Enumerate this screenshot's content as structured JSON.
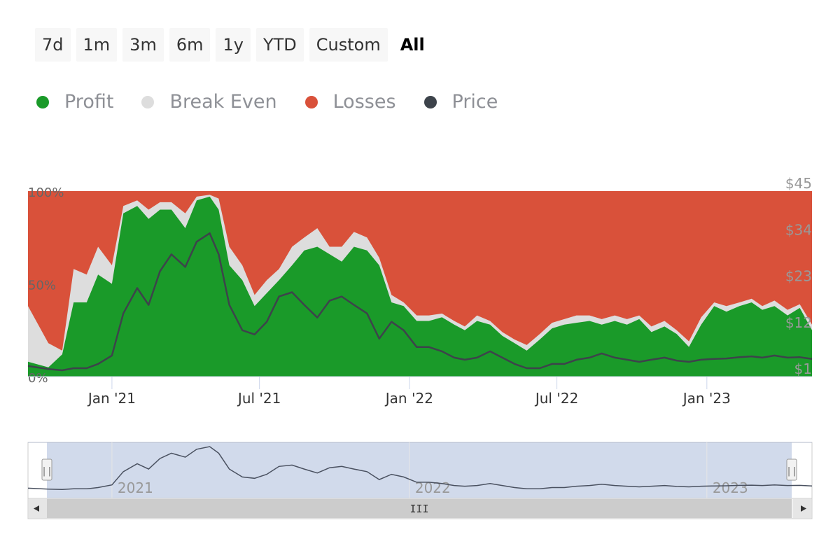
{
  "range_buttons": [
    {
      "label": "7d",
      "active": false
    },
    {
      "label": "1m",
      "active": false
    },
    {
      "label": "3m",
      "active": false
    },
    {
      "label": "6m",
      "active": false
    },
    {
      "label": "1y",
      "active": false
    },
    {
      "label": "YTD",
      "active": false
    },
    {
      "label": "Custom",
      "active": false
    },
    {
      "label": "All",
      "active": true
    }
  ],
  "legend": [
    {
      "name": "Profit",
      "color": "#1a9a29"
    },
    {
      "name": "Break Even",
      "color": "#dddddd"
    },
    {
      "name": "Losses",
      "color": "#d9513a"
    },
    {
      "name": "Price",
      "color": "#3d434b"
    }
  ],
  "chart_data": {
    "type": "area",
    "y_left": {
      "range": [
        0,
        100
      ],
      "ticks": [
        "0%",
        "50%",
        "100%"
      ]
    },
    "y_right": {
      "range": [
        1,
        45
      ],
      "ticks": [
        "$1",
        "$12",
        "$23",
        "$34",
        "$45"
      ]
    },
    "x_ticks": [
      {
        "date": "2021-01-01",
        "label": "Jan '21"
      },
      {
        "date": "2021-07-01",
        "label": "Jul '21"
      },
      {
        "date": "2022-01-01",
        "label": "Jan '22"
      },
      {
        "date": "2022-07-01",
        "label": "Jul '22"
      },
      {
        "date": "2023-01-01",
        "label": "Jan '23"
      }
    ],
    "x": [
      "2020-09-20",
      "2020-10-15",
      "2020-11-01",
      "2020-11-15",
      "2020-12-01",
      "2020-12-15",
      "2021-01-01",
      "2021-01-15",
      "2021-02-01",
      "2021-02-15",
      "2021-03-01",
      "2021-03-15",
      "2021-04-01",
      "2021-04-15",
      "2021-05-01",
      "2021-05-12",
      "2021-05-25",
      "2021-06-10",
      "2021-06-25",
      "2021-07-10",
      "2021-07-25",
      "2021-08-10",
      "2021-08-25",
      "2021-09-10",
      "2021-09-25",
      "2021-10-10",
      "2021-10-25",
      "2021-11-10",
      "2021-11-25",
      "2021-12-10",
      "2021-12-25",
      "2022-01-10",
      "2022-01-25",
      "2022-02-10",
      "2022-02-25",
      "2022-03-10",
      "2022-03-25",
      "2022-04-10",
      "2022-04-25",
      "2022-05-10",
      "2022-05-25",
      "2022-06-10",
      "2022-06-25",
      "2022-07-10",
      "2022-07-25",
      "2022-08-10",
      "2022-08-25",
      "2022-09-10",
      "2022-09-25",
      "2022-10-10",
      "2022-10-25",
      "2022-11-10",
      "2022-11-25",
      "2022-12-10",
      "2022-12-25",
      "2023-01-10",
      "2023-01-25",
      "2023-02-10",
      "2023-02-25",
      "2023-03-10",
      "2023-03-25",
      "2023-04-10",
      "2023-04-25",
      "2023-05-10"
    ],
    "series": [
      {
        "name": "Profit",
        "values": [
          8,
          5,
          12,
          40,
          40,
          55,
          50,
          88,
          92,
          85,
          90,
          90,
          80,
          95,
          97,
          90,
          60,
          52,
          38,
          45,
          52,
          60,
          68,
          70,
          66,
          62,
          70,
          68,
          60,
          40,
          38,
          30,
          30,
          32,
          28,
          25,
          30,
          28,
          22,
          18,
          14,
          20,
          26,
          28,
          29,
          30,
          28,
          30,
          28,
          31,
          24,
          27,
          23,
          16,
          28,
          38,
          35,
          38,
          40,
          36,
          38,
          33,
          37,
          25
        ]
      },
      {
        "name": "Break Even",
        "values": [
          38,
          18,
          14,
          58,
          55,
          70,
          60,
          92,
          95,
          90,
          94,
          94,
          88,
          97,
          98,
          96,
          70,
          60,
          44,
          52,
          58,
          70,
          75,
          80,
          70,
          70,
          78,
          75,
          64,
          44,
          40,
          33,
          33,
          34,
          30,
          27,
          33,
          30,
          24,
          20,
          17,
          23,
          29,
          31,
          33,
          33,
          31,
          33,
          31,
          33,
          27,
          30,
          25,
          19,
          32,
          40,
          38,
          40,
          42,
          38,
          41,
          36,
          39,
          28
        ]
      },
      {
        "name": "Losses",
        "values": [
          100,
          100,
          100,
          100,
          100,
          100,
          100,
          100,
          100,
          100,
          100,
          100,
          100,
          100,
          100,
          100,
          100,
          100,
          100,
          100,
          100,
          100,
          100,
          100,
          100,
          100,
          100,
          100,
          100,
          100,
          100,
          100,
          100,
          100,
          100,
          100,
          100,
          100,
          100,
          100,
          100,
          100,
          100,
          100,
          100,
          100,
          100,
          100,
          100,
          100,
          100,
          100,
          100,
          100,
          100,
          100,
          100,
          100,
          100,
          100,
          100,
          100,
          100,
          100
        ]
      },
      {
        "name": "Price",
        "values": [
          3.5,
          2.8,
          2.5,
          3,
          3,
          4,
          6,
          16,
          22,
          18,
          26,
          30,
          27,
          33,
          35,
          30,
          18,
          12,
          11,
          14,
          20,
          21,
          18,
          15,
          19,
          20,
          18,
          16,
          10,
          14,
          12,
          8,
          8,
          7,
          5.5,
          5,
          5.5,
          7,
          5.5,
          4,
          3,
          3,
          4,
          4,
          5,
          5.5,
          6.5,
          5.5,
          5,
          4.5,
          5,
          5.5,
          4.8,
          4.5,
          5,
          5.2,
          5.3,
          5.6,
          5.8,
          5.5,
          6,
          5.5,
          5.6,
          5.2
        ]
      }
    ]
  },
  "navigator": {
    "year_labels": [
      {
        "date": "2021-01-01",
        "label": "2021"
      },
      {
        "date": "2022-01-01",
        "label": "2022"
      },
      {
        "date": "2023-01-01",
        "label": "2023"
      }
    ],
    "handle_glyph": "||",
    "scrollbar_grip": "III"
  }
}
